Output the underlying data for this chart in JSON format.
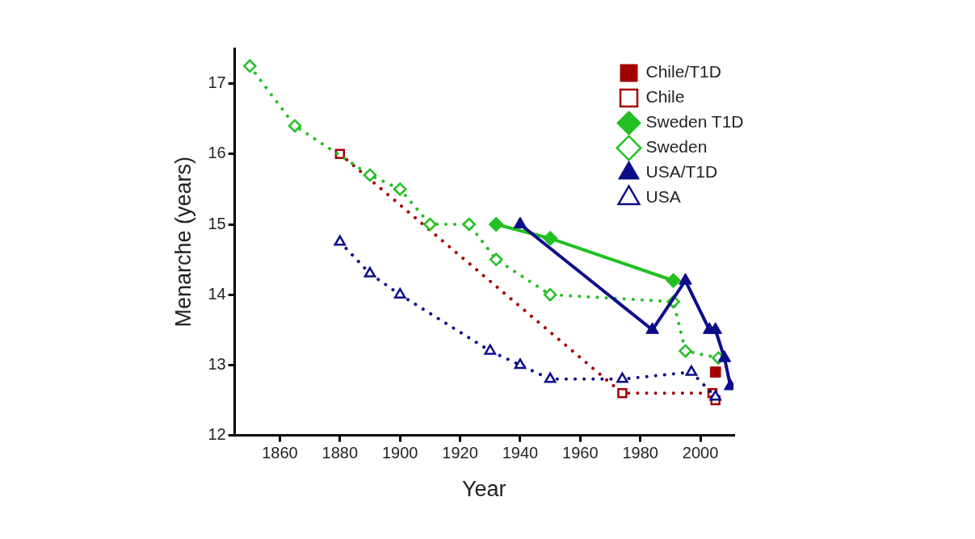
{
  "chart_data": {
    "type": "line",
    "xlabel": "Year",
    "ylabel": "Menarche (years)",
    "xlim": [
      1845,
      2011
    ],
    "xticks": [
      1860,
      1880,
      1900,
      1920,
      1940,
      1960,
      1980,
      2000
    ],
    "ylim": [
      12,
      17.5
    ],
    "yticks": [
      12,
      13,
      14,
      15,
      16,
      17
    ],
    "legend": "top right",
    "series": [
      {
        "name": "Chile/T1D",
        "color": "#a50000",
        "marker": "square",
        "line_style": "solid",
        "x": [
          2005
        ],
        "values": [
          12.9
        ]
      },
      {
        "name": "Chile",
        "color": "#a50000",
        "marker": "square",
        "line_style": "dotted",
        "x": [
          1880,
          1974,
          2004,
          2005
        ],
        "values": [
          16,
          12.6,
          12.6,
          12.5
        ]
      },
      {
        "name": "Sweden T1D",
        "color": "#22c022",
        "marker": "diamond",
        "line_style": "solid",
        "x": [
          1932,
          1950,
          1991
        ],
        "values": [
          15,
          14.8,
          14.2
        ]
      },
      {
        "name": "Sweden",
        "color": "#22c022",
        "marker": "diamond",
        "line_style": "dotted",
        "x": [
          1850,
          1865,
          1890,
          1900,
          1910,
          1923,
          1932,
          1950,
          1991,
          1995,
          2006
        ],
        "values": [
          17.25,
          16.4,
          15.7,
          15.5,
          15,
          15,
          14.5,
          14,
          13.9,
          13.2,
          13.1
        ]
      },
      {
        "name": "USA/T1D",
        "color": "#0c0c8a",
        "marker": "triangle",
        "line_style": "solid",
        "x": [
          1940,
          1984,
          1995,
          2003,
          2005,
          2008,
          2010
        ],
        "values": [
          15,
          13.5,
          14.2,
          13.5,
          13.5,
          13.1,
          12.7
        ]
      },
      {
        "name": "USA",
        "color": "#0c0c8a",
        "marker": "triangle",
        "line_style": "dotted",
        "x": [
          1880,
          1890,
          1900,
          1930,
          1940,
          1950,
          1974,
          1997,
          2005
        ],
        "values": [
          14.75,
          14.3,
          14,
          13.2,
          13,
          12.8,
          12.8,
          12.9,
          12.55
        ]
      }
    ]
  }
}
